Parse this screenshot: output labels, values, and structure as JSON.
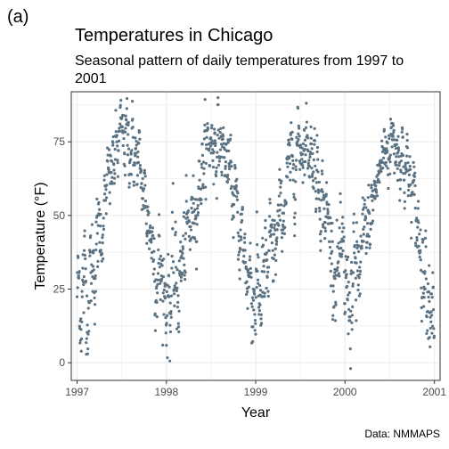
{
  "panel_tag": "(a)",
  "caption": "Data: NMMAPS",
  "colors": {
    "points": "#5b7283",
    "grid": "#ebebeb",
    "border": "#333333"
  },
  "chart_data": {
    "type": "scatter",
    "title": "Temperatures in Chicago",
    "subtitle": "Seasonal pattern of daily temperatures from 1997 to 2001",
    "xlabel": "Year",
    "ylabel": "Temperature (°F)",
    "xlim": [
      "1996-12-08",
      "2001-01-24"
    ],
    "ylim": [
      -6,
      92
    ],
    "x_ticks": [
      "1997",
      "1998",
      "1999",
      "2000",
      "2001"
    ],
    "y_ticks": [
      0,
      25,
      50,
      75
    ],
    "grid": true,
    "legend": "none",
    "series": [
      {
        "points_daily": true,
        "x": [],
        "y": []
      }
    ],
    "seasonal_summary": {
      "annual_minima_approx": [
        {
          "date": "1997-01-15",
          "y": -3
        },
        {
          "date": "1998-01-05",
          "y": 18
        },
        {
          "date": "1999-01-05",
          "y": -4
        },
        {
          "date": "2000-01-20",
          "y": 16
        },
        {
          "date": "2000-12-20",
          "y": -1
        }
      ],
      "annual_maxima_approx": [
        {
          "date": "1997-07-15",
          "y": 85
        },
        {
          "date": "1998-07-15",
          "y": 85
        },
        {
          "date": "1999-07-25",
          "y": 90
        },
        {
          "date": "2000-07-10",
          "y": 85
        }
      ]
    }
  }
}
